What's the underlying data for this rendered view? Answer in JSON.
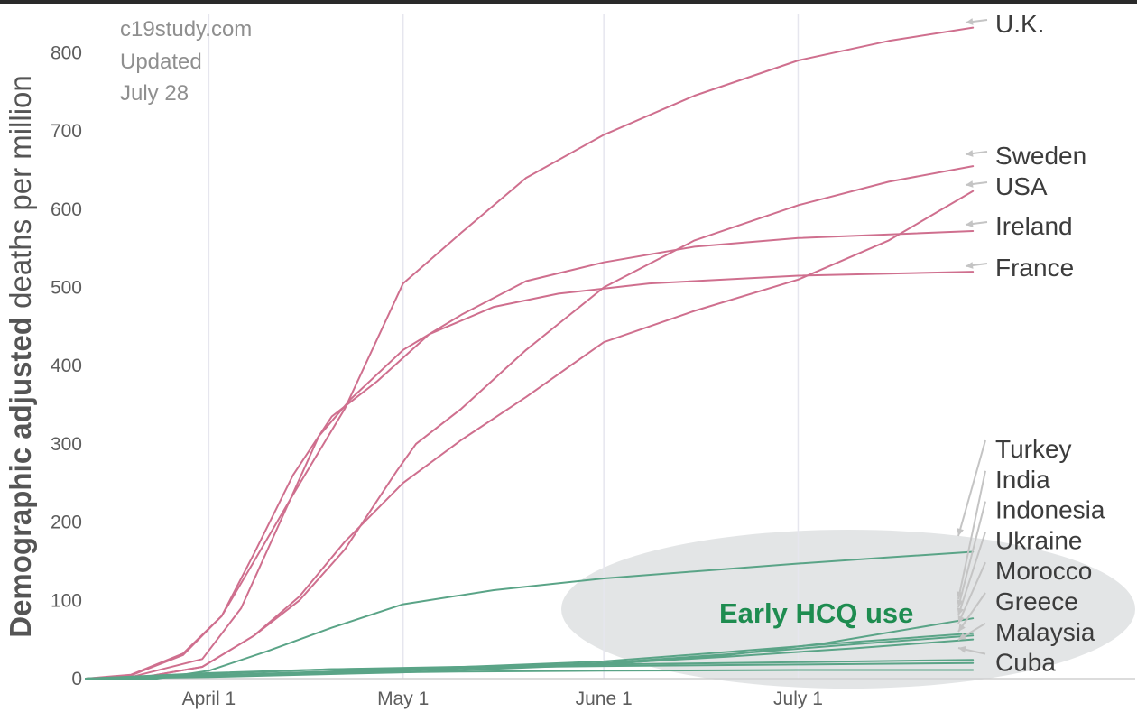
{
  "source_note": [
    "c19study.com",
    "Updated",
    "July 28"
  ],
  "annotation": "Early HCQ use",
  "colors": {
    "high": "#cf6f8e",
    "low": "#5aa487",
    "annotation": "#1e8c50",
    "ellipse": "#e3e5e6",
    "grid": "#e6e6ee",
    "arrow": "#c4c4c4"
  },
  "chart_data": {
    "type": "line",
    "ylabel_bold": "Demographic adjusted",
    "ylabel_rest": " deaths per million",
    "xlabel": "",
    "title": "",
    "ylim": [
      0,
      850
    ],
    "yticks": [
      0,
      100,
      200,
      300,
      400,
      500,
      600,
      700,
      800
    ],
    "x_domain": [
      "2020-03-13",
      "2020-08-07"
    ],
    "x_end": "2020-07-28",
    "xticks": [
      {
        "date": "2020-04-01",
        "label": "April 1"
      },
      {
        "date": "2020-05-01",
        "label": "May 1"
      },
      {
        "date": "2020-06-01",
        "label": "June 1"
      },
      {
        "date": "2020-07-01",
        "label": "July 1"
      }
    ],
    "grid": true,
    "series": [
      {
        "name": "U.K.",
        "group": "high",
        "end_value": 832,
        "points": [
          [
            "2020-03-13",
            0
          ],
          [
            "2020-03-20",
            5
          ],
          [
            "2020-03-28",
            32
          ],
          [
            "2020-04-03",
            80
          ],
          [
            "2020-04-08",
            150
          ],
          [
            "2020-04-14",
            235
          ],
          [
            "2020-04-22",
            345
          ],
          [
            "2020-05-01",
            505
          ],
          [
            "2020-05-10",
            570
          ],
          [
            "2020-05-20",
            640
          ],
          [
            "2020-06-01",
            695
          ],
          [
            "2020-06-15",
            745
          ],
          [
            "2020-07-01",
            790
          ],
          [
            "2020-07-15",
            815
          ],
          [
            "2020-07-28",
            832
          ]
        ]
      },
      {
        "name": "Sweden",
        "group": "high",
        "end_value": 655,
        "points": [
          [
            "2020-03-13",
            0
          ],
          [
            "2020-03-22",
            2
          ],
          [
            "2020-03-31",
            15
          ],
          [
            "2020-04-08",
            55
          ],
          [
            "2020-04-15",
            100
          ],
          [
            "2020-04-22",
            165
          ],
          [
            "2020-04-30",
            265
          ],
          [
            "2020-05-03",
            300
          ],
          [
            "2020-05-10",
            345
          ],
          [
            "2020-05-20",
            420
          ],
          [
            "2020-06-01",
            500
          ],
          [
            "2020-06-15",
            560
          ],
          [
            "2020-07-01",
            605
          ],
          [
            "2020-07-15",
            635
          ],
          [
            "2020-07-28",
            655
          ]
        ]
      },
      {
        "name": "USA",
        "group": "high",
        "end_value": 623,
        "points": [
          [
            "2020-03-13",
            0
          ],
          [
            "2020-03-22",
            2
          ],
          [
            "2020-03-31",
            15
          ],
          [
            "2020-04-08",
            55
          ],
          [
            "2020-04-15",
            105
          ],
          [
            "2020-04-22",
            175
          ],
          [
            "2020-05-01",
            250
          ],
          [
            "2020-05-10",
            305
          ],
          [
            "2020-05-20",
            360
          ],
          [
            "2020-06-01",
            430
          ],
          [
            "2020-06-15",
            470
          ],
          [
            "2020-07-01",
            510
          ],
          [
            "2020-07-15",
            560
          ],
          [
            "2020-07-28",
            623
          ]
        ]
      },
      {
        "name": "Ireland",
        "group": "high",
        "end_value": 572,
        "points": [
          [
            "2020-03-13",
            0
          ],
          [
            "2020-03-20",
            2
          ],
          [
            "2020-03-31",
            25
          ],
          [
            "2020-04-06",
            90
          ],
          [
            "2020-04-12",
            200
          ],
          [
            "2020-04-18",
            310
          ],
          [
            "2020-04-23",
            358
          ],
          [
            "2020-05-01",
            420
          ],
          [
            "2020-05-10",
            465
          ],
          [
            "2020-05-20",
            508
          ],
          [
            "2020-06-01",
            532
          ],
          [
            "2020-06-15",
            552
          ],
          [
            "2020-07-01",
            563
          ],
          [
            "2020-07-28",
            572
          ]
        ]
      },
      {
        "name": "France",
        "group": "high",
        "end_value": 520,
        "points": [
          [
            "2020-03-13",
            0
          ],
          [
            "2020-03-20",
            4
          ],
          [
            "2020-03-28",
            30
          ],
          [
            "2020-04-03",
            80
          ],
          [
            "2020-04-08",
            160
          ],
          [
            "2020-04-14",
            260
          ],
          [
            "2020-04-20",
            335
          ],
          [
            "2020-04-27",
            380
          ],
          [
            "2020-05-05",
            440
          ],
          [
            "2020-05-15",
            475
          ],
          [
            "2020-05-25",
            492
          ],
          [
            "2020-06-08",
            505
          ],
          [
            "2020-07-01",
            515
          ],
          [
            "2020-07-28",
            520
          ]
        ]
      },
      {
        "name": "Turkey",
        "group": "low",
        "end_value": 162,
        "points": [
          [
            "2020-03-13",
            0
          ],
          [
            "2020-03-24",
            0
          ],
          [
            "2020-04-01",
            10
          ],
          [
            "2020-04-10",
            35
          ],
          [
            "2020-04-20",
            65
          ],
          [
            "2020-05-01",
            95
          ],
          [
            "2020-05-15",
            113
          ],
          [
            "2020-06-01",
            128
          ],
          [
            "2020-06-15",
            137
          ],
          [
            "2020-07-01",
            147
          ],
          [
            "2020-07-15",
            155
          ],
          [
            "2020-07-28",
            162
          ]
        ]
      },
      {
        "name": "India",
        "group": "low",
        "end_value": 77,
        "points": [
          [
            "2020-03-13",
            0
          ],
          [
            "2020-04-01",
            2
          ],
          [
            "2020-05-01",
            8
          ],
          [
            "2020-06-01",
            18
          ],
          [
            "2020-06-20",
            30
          ],
          [
            "2020-07-05",
            45
          ],
          [
            "2020-07-28",
            77
          ]
        ]
      },
      {
        "name": "Indonesia",
        "group": "low",
        "end_value": 58,
        "points": [
          [
            "2020-03-13",
            0
          ],
          [
            "2020-04-01",
            4
          ],
          [
            "2020-05-01",
            12
          ],
          [
            "2020-06-01",
            22
          ],
          [
            "2020-06-20",
            34
          ],
          [
            "2020-07-10",
            47
          ],
          [
            "2020-07-28",
            58
          ]
        ]
      },
      {
        "name": "Ukraine",
        "group": "low",
        "end_value": 55,
        "points": [
          [
            "2020-03-13",
            0
          ],
          [
            "2020-04-01",
            3
          ],
          [
            "2020-05-01",
            10
          ],
          [
            "2020-06-01",
            20
          ],
          [
            "2020-06-20",
            31
          ],
          [
            "2020-07-10",
            44
          ],
          [
            "2020-07-28",
            55
          ]
        ]
      },
      {
        "name": "Morocco",
        "group": "low",
        "end_value": 50,
        "points": [
          [
            "2020-03-13",
            0
          ],
          [
            "2020-04-01",
            4
          ],
          [
            "2020-05-01",
            11
          ],
          [
            "2020-06-01",
            19
          ],
          [
            "2020-06-20",
            28
          ],
          [
            "2020-07-10",
            39
          ],
          [
            "2020-07-28",
            50
          ]
        ]
      },
      {
        "name": "Greece",
        "group": "low",
        "end_value": 24,
        "points": [
          [
            "2020-03-13",
            0
          ],
          [
            "2020-04-01",
            6
          ],
          [
            "2020-04-20",
            12
          ],
          [
            "2020-05-10",
            15
          ],
          [
            "2020-06-01",
            18
          ],
          [
            "2020-07-01",
            21
          ],
          [
            "2020-07-28",
            24
          ]
        ]
      },
      {
        "name": "Malaysia",
        "group": "low",
        "end_value": 20,
        "points": [
          [
            "2020-03-13",
            0
          ],
          [
            "2020-04-01",
            7
          ],
          [
            "2020-04-20",
            12
          ],
          [
            "2020-05-10",
            14
          ],
          [
            "2020-06-01",
            16
          ],
          [
            "2020-07-01",
            18
          ],
          [
            "2020-07-28",
            20
          ]
        ]
      },
      {
        "name": "Cuba",
        "group": "low",
        "end_value": 11,
        "points": [
          [
            "2020-03-13",
            0
          ],
          [
            "2020-04-01",
            3
          ],
          [
            "2020-04-20",
            7
          ],
          [
            "2020-05-10",
            9
          ],
          [
            "2020-06-01",
            10
          ],
          [
            "2020-07-01",
            11
          ],
          [
            "2020-07-28",
            11
          ]
        ]
      }
    ]
  }
}
